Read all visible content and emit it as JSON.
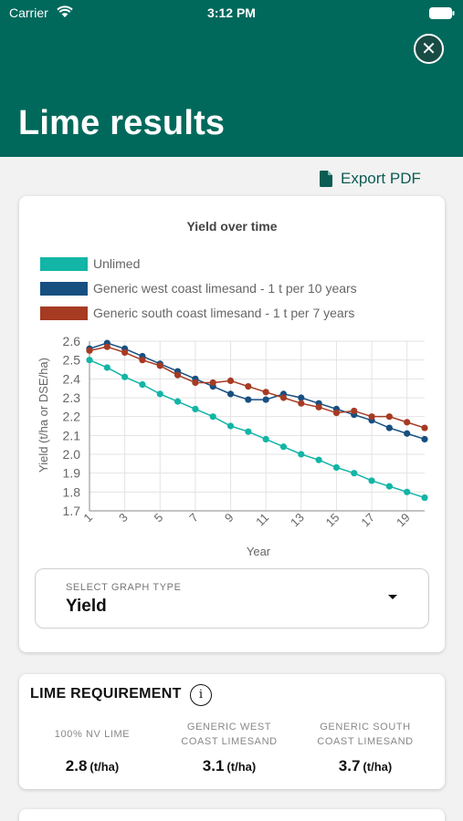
{
  "status_bar": {
    "carrier": "Carrier",
    "time": "3:12 PM"
  },
  "header": {
    "title": "Lime results",
    "close_label": "✕"
  },
  "toolbar": {
    "export_label": "Export PDF"
  },
  "chart_data": {
    "type": "line",
    "title": "Yield over time",
    "xlabel": "Year",
    "ylabel": "Yield (t/ha or DSE/ha)",
    "x": [
      1,
      2,
      3,
      4,
      5,
      6,
      7,
      8,
      9,
      10,
      11,
      12,
      13,
      14,
      15,
      16,
      17,
      18,
      19,
      20
    ],
    "xticks": [
      1,
      3,
      5,
      7,
      9,
      11,
      13,
      15,
      17,
      19
    ],
    "ylim": [
      1.7,
      2.6
    ],
    "yticks": [
      1.7,
      1.8,
      1.9,
      2.0,
      2.1,
      2.2,
      2.3,
      2.4,
      2.5,
      2.6
    ],
    "ytick_labels": [
      "1.7",
      "1.8",
      "1.9",
      "2.0",
      "2.1",
      "2.2",
      "2.3",
      "2.4",
      "2.5",
      "2.6"
    ],
    "grid": true,
    "legend_position": "top",
    "series": [
      {
        "name": "Unlimed",
        "color": "#12b5a6",
        "values": [
          2.5,
          2.46,
          2.41,
          2.37,
          2.32,
          2.28,
          2.24,
          2.2,
          2.15,
          2.12,
          2.08,
          2.04,
          2.0,
          1.97,
          1.93,
          1.9,
          1.86,
          1.83,
          1.8,
          1.77
        ]
      },
      {
        "name": "Generic west coast limesand - 1 t per 10 years",
        "color": "#174f80",
        "values": [
          2.56,
          2.59,
          2.56,
          2.52,
          2.48,
          2.44,
          2.4,
          2.36,
          2.32,
          2.29,
          2.29,
          2.32,
          2.3,
          2.27,
          2.24,
          2.21,
          2.18,
          2.14,
          2.11,
          2.08
        ]
      },
      {
        "name": "Generic south coast limesand - 1 t per 7 years",
        "color": "#a63a22",
        "values": [
          2.55,
          2.57,
          2.54,
          2.5,
          2.47,
          2.42,
          2.38,
          2.38,
          2.39,
          2.36,
          2.33,
          2.3,
          2.27,
          2.25,
          2.22,
          2.23,
          2.2,
          2.2,
          2.17,
          2.14
        ]
      }
    ]
  },
  "graph_type": {
    "caption": "SELECT GRAPH TYPE",
    "value": "Yield"
  },
  "lime_requirement": {
    "title": "LIME REQUIREMENT",
    "info_label": "i",
    "columns": [
      {
        "caption": "100% NV LIME",
        "value": "2.8",
        "unit": "(t/ha)"
      },
      {
        "caption": "GENERIC WEST COAST LIMESAND",
        "value": "3.1",
        "unit": "(t/ha)"
      },
      {
        "caption": "GENERIC SOUTH COAST LIMESAND",
        "value": "3.7",
        "unit": "(t/ha)"
      }
    ]
  }
}
